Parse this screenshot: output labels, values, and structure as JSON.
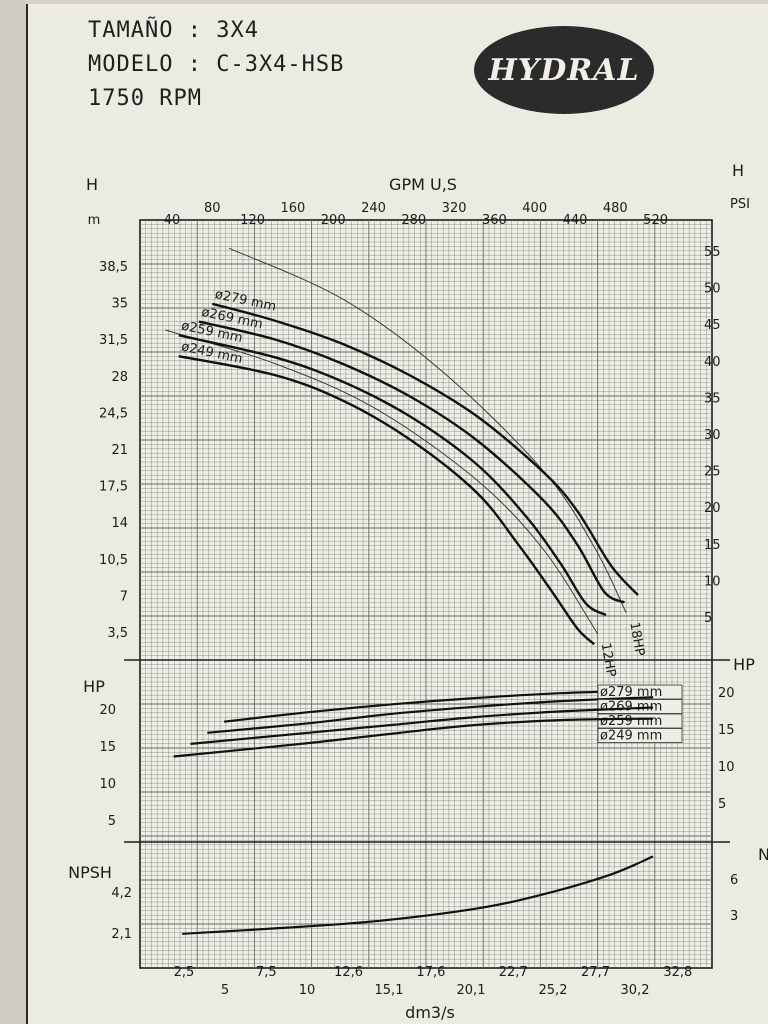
{
  "header": {
    "tamano": "TAMAÑO : 3X4",
    "modelo": "MODELO : C-3X4-HSB",
    "rpm": "1750 RPM",
    "logo": "HYDRAL"
  },
  "chart_data": [
    {
      "type": "line",
      "panel": "head",
      "xlabel_top": "GPM U,S",
      "xlabel_bottom": "dm3/s",
      "ylabel_left": "H",
      "ylabel_left_unit": "m",
      "ylabel_right": "H",
      "ylabel_right_unit": "PSI",
      "x_ticks_gpm": [
        "40",
        "80",
        "120",
        "160",
        "200",
        "240",
        "280",
        "320",
        "360",
        "400",
        "440",
        "480",
        "520"
      ],
      "x_ticks_dm3s_row1": [
        "2,5",
        "7,5",
        "12,6",
        "17,6",
        "22,7",
        "27,7",
        "32,8"
      ],
      "x_ticks_dm3s_row2": [
        "5",
        "10",
        "15,1",
        "20,1",
        "25,2",
        "30,2"
      ],
      "y_ticks_m": [
        "38,5",
        "35",
        "31,5",
        "28",
        "24,5",
        "21",
        "17,5",
        "14",
        "10,5",
        "7",
        "3,5"
      ],
      "y_ticks_psi": [
        "55",
        "50",
        "45",
        "40",
        "35",
        "30",
        "25",
        "20",
        "15",
        "10",
        "5"
      ],
      "xlim": [
        0,
        34
      ],
      "ylim": [
        0,
        42
      ],
      "series": [
        {
          "name": "ø279 mm",
          "x": [
            4.3,
            8,
            12,
            16,
            20,
            24,
            26,
            28,
            29.6
          ],
          "y": [
            34,
            32.4,
            30.2,
            27.2,
            23.3,
            17.9,
            14.2,
            9,
            6.2
          ]
        },
        {
          "name": "ø269 mm",
          "x": [
            3.5,
            8,
            12,
            16,
            20,
            24,
            26,
            27.6,
            28.8
          ],
          "y": [
            32.3,
            30.6,
            28.3,
            25.2,
            21,
            15.2,
            11,
            6.5,
            5.5
          ]
        },
        {
          "name": "ø259 mm",
          "x": [
            2.3,
            8,
            12,
            16,
            20,
            23,
            25,
            26.5,
            27.7
          ],
          "y": [
            31,
            28.9,
            26.6,
            23.3,
            18.7,
            13.6,
            9.2,
            5.4,
            4.3
          ]
        },
        {
          "name": "ø249 mm",
          "x": [
            2.3,
            8,
            12,
            16,
            20,
            22.5,
            24.5,
            26,
            27
          ],
          "y": [
            29,
            27.2,
            24.8,
            21.1,
            16,
            11,
            6.5,
            3,
            1.5
          ]
        }
      ],
      "hp_limits": [
        {
          "name": "18HP",
          "x": [
            5.3,
            12,
            18,
            24,
            27,
            28.9
          ],
          "y": [
            39.3,
            34.5,
            27.5,
            18,
            10.8,
            4.5
          ]
        },
        {
          "name": "12HP",
          "x": [
            1.5,
            8,
            14,
            20,
            24,
            27.2
          ],
          "y": [
            31.5,
            28.3,
            24,
            17.2,
            10.5,
            2.5
          ]
        }
      ]
    },
    {
      "type": "line",
      "panel": "power",
      "ylabel_left": "HP",
      "ylabel_right": "HP",
      "y_ticks_left": [
        "20",
        "15",
        "10",
        "5"
      ],
      "y_ticks_right": [
        "20",
        "15",
        "10",
        "5"
      ],
      "ylim": [
        0,
        23
      ],
      "series": [
        {
          "name": "ø279 mm",
          "x": [
            5,
            10,
            15,
            20,
            25,
            30.5
          ],
          "y": [
            15.2,
            16.4,
            17.4,
            18.2,
            18.8,
            19.2
          ]
        },
        {
          "name": "ø269 mm",
          "x": [
            4,
            10,
            15,
            20,
            25,
            30.5
          ],
          "y": [
            13.8,
            15,
            16.2,
            17.1,
            17.8,
            18.3
          ]
        },
        {
          "name": "ø259 mm",
          "x": [
            3,
            10,
            15,
            20,
            25,
            30.5
          ],
          "y": [
            12.4,
            13.8,
            14.8,
            15.8,
            16.5,
            17
          ]
        },
        {
          "name": "ø249 mm",
          "x": [
            2,
            10,
            15,
            20,
            25,
            30.5
          ],
          "y": [
            10.8,
            12.5,
            13.7,
            14.8,
            15.4,
            15.6
          ]
        }
      ]
    },
    {
      "type": "line",
      "panel": "npsh",
      "ylabel_left": "NPSH",
      "ylabel_right": "NPSH",
      "y_ticks_left": [
        "4,2",
        "2,1"
      ],
      "y_ticks_right": [
        "6",
        "3"
      ],
      "ylim": [
        0,
        7
      ],
      "series": [
        {
          "name": "NPSH",
          "x": [
            2.5,
            8,
            14,
            20,
            24,
            28,
            30.5
          ],
          "y": [
            1.9,
            2.2,
            2.6,
            3.3,
            4.1,
            5.2,
            6.2
          ]
        }
      ]
    }
  ]
}
